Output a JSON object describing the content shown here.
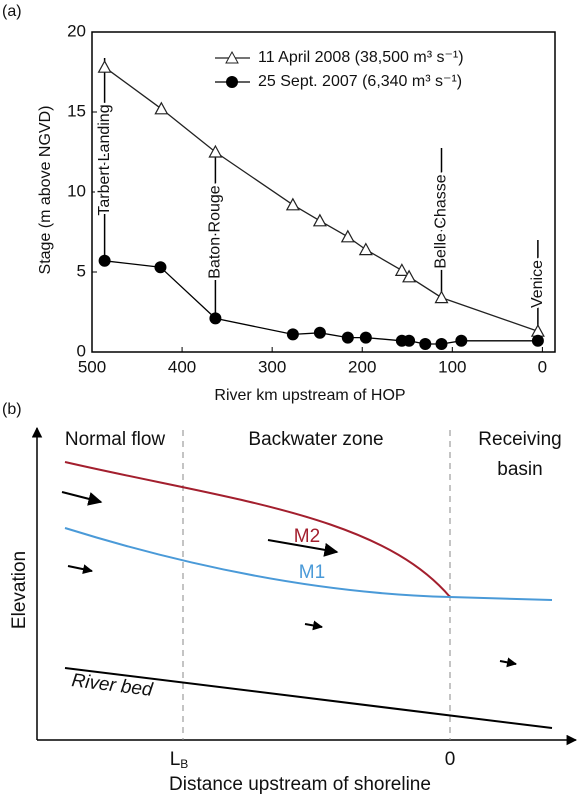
{
  "chart_data": {
    "type": "line",
    "panel_label": "(a)",
    "xlabel": "River km upstream of HOP",
    "ylabel": "Stage (m above NGVD)",
    "xlim": [
      500,
      -14
    ],
    "ylim": [
      0,
      20
    ],
    "xticks": [
      500,
      400,
      300,
      200,
      100,
      0
    ],
    "yticks": [
      0,
      5,
      10,
      15,
      20
    ],
    "legend": "upper right",
    "series": [
      {
        "name": "11 April 2008 (38,500 m³ s⁻¹)",
        "marker": "triangle",
        "color": "#222",
        "x": [
          486,
          423,
          363,
          277,
          247,
          216,
          196,
          156,
          148,
          112,
          5
        ],
        "values": [
          17.8,
          15.2,
          12.5,
          9.2,
          8.2,
          7.2,
          6.4,
          5.1,
          4.7,
          3.4,
          1.3
        ]
      },
      {
        "name": "25 Sept. 2007 (6,340 m³ s⁻¹)",
        "marker": "circle",
        "color": "#000",
        "x": [
          486,
          424,
          363,
          277,
          247,
          216,
          196,
          156,
          148,
          130,
          112,
          90,
          5
        ],
        "values": [
          5.7,
          5.3,
          2.1,
          1.1,
          1.2,
          0.9,
          0.9,
          0.7,
          0.7,
          0.5,
          0.5,
          0.7,
          0.7
        ]
      }
    ],
    "annotations": [
      {
        "text": "Tarbert Landing",
        "x": 486
      },
      {
        "text": "Baton Rouge",
        "x": 363
      },
      {
        "text": "Belle Chasse",
        "x": 112
      },
      {
        "text": "Venice",
        "x": 5
      }
    ]
  },
  "diagram": {
    "panel_label": "(b)",
    "zones": [
      "Normal flow",
      "Backwater zone"
    ],
    "receiving": [
      "Receiving",
      "basin"
    ],
    "curves": [
      "M2",
      "M1",
      "River bed"
    ],
    "ylabel": "Elevation",
    "ticks": [
      {
        "main": "L",
        "sub": "B"
      },
      "0"
    ],
    "xlabel": "Distance upstream of shoreline"
  }
}
